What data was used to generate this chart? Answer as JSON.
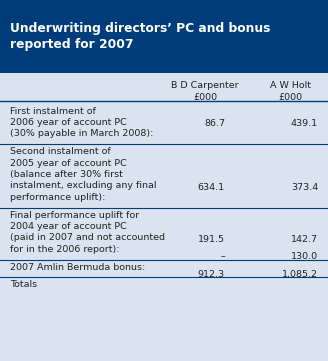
{
  "title_line1": "Underwriting directors’ PC and bonus",
  "title_line2": "reported for 2007",
  "title_bg": "#003d7a",
  "title_color": "#ffffff",
  "table_bg": "#d9e4f0",
  "header_col1": "B D Carpenter",
  "header_col2": "A W Holt",
  "header_sub": "£000",
  "rows": [
    {
      "label_lines": [
        "First instalment of",
        "2006 year of account PC",
        "(30% payable in March 2008):"
      ],
      "val1": "86.7",
      "val2": "439.1",
      "line_below": true
    },
    {
      "label_lines": [
        "Second instalment of",
        "2005 year of account PC",
        "(balance after 30% first",
        "instalment, excluding any final",
        "performance uplift):"
      ],
      "val1": "634.1",
      "val2": "373.4",
      "line_below": true
    },
    {
      "label_lines": [
        "Final performance uplift for",
        "2004 year of account PC",
        "(paid in 2007 and not accounted",
        "for in the 2006 report):"
      ],
      "val1": "191.5",
      "val2": "142.7",
      "line_below": true
    },
    {
      "label_lines": [
        "2007 Amlin Bermuda bonus:"
      ],
      "val1": "–",
      "val2": "130.0",
      "line_below": true
    },
    {
      "label_lines": [
        "Totals"
      ],
      "val1": "912.3",
      "val2": "1,085.2",
      "line_below": false
    }
  ],
  "line_color": "#003d7a",
  "text_color": "#222222",
  "font_size": 6.8,
  "title_font_size": 8.8
}
